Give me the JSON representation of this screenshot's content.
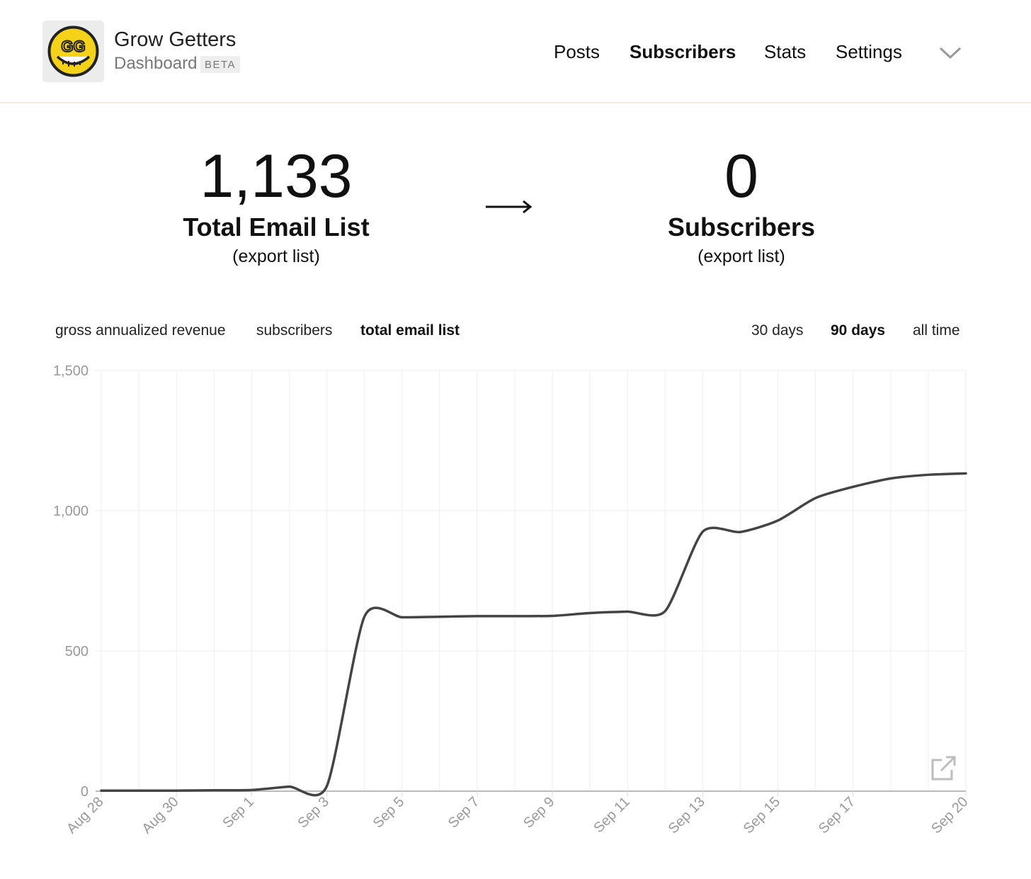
{
  "app": {
    "title": "Grow Getters",
    "subtitle": "Dashboard",
    "badge": "BETA",
    "logo_text": "GG",
    "logo_color": "#f5d21a"
  },
  "nav": {
    "items": [
      {
        "label": "Posts",
        "active": false
      },
      {
        "label": "Subscribers",
        "active": true
      },
      {
        "label": "Stats",
        "active": false
      },
      {
        "label": "Settings",
        "active": false
      }
    ],
    "menu_icon": "chevron-down-icon"
  },
  "stats": {
    "left": {
      "value": "1,133",
      "label": "Total Email List",
      "link": "(export list)"
    },
    "arrow": "⟶",
    "right": {
      "value": "0",
      "label": "Subscribers",
      "link": "(export list)"
    }
  },
  "metric_tabs": [
    {
      "label": "gross annualized revenue",
      "active": false
    },
    {
      "label": "subscribers",
      "active": false
    },
    {
      "label": "total email list",
      "active": true
    }
  ],
  "range_tabs": [
    {
      "label": "30 days",
      "active": false
    },
    {
      "label": "90 days",
      "active": true
    },
    {
      "label": "all time",
      "active": false
    }
  ],
  "chart_data": {
    "type": "line",
    "title": "",
    "xlabel": "",
    "ylabel": "",
    "ylim": [
      0,
      1500
    ],
    "yticks": [
      0,
      500,
      1000,
      1500
    ],
    "ytick_labels": [
      "0",
      "500",
      "1,000",
      "1,500"
    ],
    "xlim": [
      0,
      23
    ],
    "xtick_positions": [
      0,
      2,
      4,
      6,
      8,
      10,
      12,
      14,
      16,
      18,
      20,
      23
    ],
    "xtick_labels": [
      "Aug 28",
      "Aug 30",
      "Sep 1",
      "Sep 3",
      "Sep 5",
      "Sep 7",
      "Sep 9",
      "Sep 11",
      "Sep 13",
      "Sep 15",
      "Sep 17",
      "Sep 20"
    ],
    "series": [
      {
        "name": "total email list",
        "color": "#444444",
        "x": [
          0,
          1,
          2,
          3,
          4,
          5,
          6,
          7,
          8,
          9,
          10,
          11,
          12,
          13,
          14,
          15,
          16,
          17,
          18,
          19,
          20,
          21,
          22,
          23
        ],
        "values": [
          2,
          2,
          2,
          3,
          4,
          16,
          18,
          622,
          620,
          622,
          624,
          624,
          625,
          635,
          640,
          642,
          925,
          924,
          965,
          1045,
          1085,
          1115,
          1128,
          1133
        ]
      }
    ],
    "grid": true
  }
}
